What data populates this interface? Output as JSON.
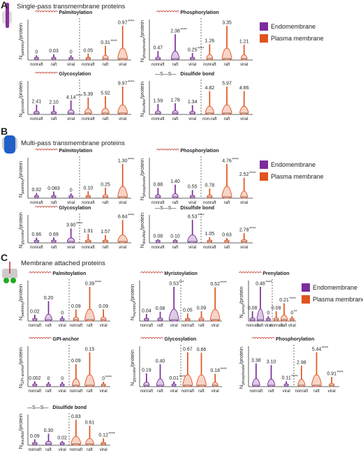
{
  "panels": [
    {
      "label": "A",
      "title": "Single-pass transmembrane proteins",
      "legend": [
        {
          "name": "Endomembrane",
          "color": "#7b2d9c"
        },
        {
          "name": "Plasma membrane",
          "color": "#e0531f"
        }
      ],
      "chart_data": [
        {
          "type": "violin",
          "title": "Palmitoylation",
          "ylabel": {
            "n": "N",
            "sub": "palmitoyl",
            "rest": "/protein"
          },
          "categories": [
            "nonraft",
            "raft",
            "viral",
            "nonraft",
            "raft",
            "viral"
          ],
          "values": [
            0,
            0.03,
            0,
            0.05,
            0.31,
            0.97
          ],
          "value_labels": [
            "0",
            "0.03",
            "0",
            "0.05",
            "0.31",
            "0.97"
          ],
          "stars": [
            null,
            null,
            null,
            null,
            "****",
            "****"
          ]
        },
        {
          "type": "violin",
          "title": "Phosphorylation",
          "ylabel": {
            "n": "N",
            "sub": "phosphosite",
            "rest": "/protein"
          },
          "categories": [
            "nonraft",
            "raft",
            "viral",
            "nonraft",
            "raft",
            "viral"
          ],
          "values": [
            0.47,
            2.38,
            0.25,
            1.26,
            3.35,
            1.21
          ],
          "value_labels": [
            "0.47",
            "2.38",
            "0.25",
            "1.26",
            "3.35",
            "1.21"
          ],
          "stars": [
            null,
            "****",
            "****",
            null,
            null,
            null
          ]
        },
        {
          "type": "violin",
          "title": "Glycosylation",
          "ylabel": {
            "n": "N",
            "sub": "glycosite",
            "rest": "/protein"
          },
          "categories": [
            "nonraft",
            "raft",
            "viral",
            "nonraft",
            "raft",
            "viral"
          ],
          "values": [
            2.41,
            2.1,
            4.14,
            5.39,
            5.92,
            9.97
          ],
          "value_labels": [
            "2.41",
            "2.10",
            "4.14",
            "5.39",
            "5.92",
            "9.97"
          ],
          "stars": [
            null,
            null,
            "****",
            null,
            null,
            "****"
          ]
        },
        {
          "type": "violin",
          "title": "Disulfide bond",
          "icon_label": "—S—S—",
          "ylabel": {
            "n": "N",
            "sub": "disulfide",
            "rest": "/protein"
          },
          "categories": [
            "nonraft",
            "raft",
            "viral",
            "non-raft",
            "raft",
            "viral"
          ],
          "values": [
            1.59,
            1.78,
            1.34,
            4.82,
            5.97,
            4.86
          ],
          "value_labels": [
            "1.59",
            "1.78",
            "1.34",
            "4.82",
            "5.97",
            "4.86"
          ],
          "stars": [
            null,
            null,
            null,
            null,
            null,
            null
          ]
        }
      ]
    },
    {
      "label": "B",
      "title": "Multi-pass transmembrane proteins",
      "legend": [
        {
          "name": "Endomembrane",
          "color": "#7b2d9c"
        },
        {
          "name": "Plasma membrane",
          "color": "#e0531f"
        }
      ],
      "chart_data": [
        {
          "type": "violin",
          "title": "Palmitoylation",
          "ylabel": {
            "n": "N",
            "sub": "palmitoyl",
            "rest": "/protein"
          },
          "categories": [
            "nonraft",
            "raft",
            "viral",
            "nonraft",
            "raft",
            "viral"
          ],
          "values": [
            0.02,
            0.083,
            0,
            0.1,
            0.25,
            1.3
          ],
          "value_labels": [
            "0.02",
            "0.083",
            "0",
            "0.10",
            "0.25",
            "1.30"
          ],
          "stars": [
            null,
            null,
            null,
            null,
            null,
            "****"
          ]
        },
        {
          "type": "violin",
          "title": "Phosphorylation",
          "ylabel": {
            "n": "N",
            "sub": "phosphosite",
            "rest": "/protein"
          },
          "categories": [
            "nonraft",
            "raft",
            "viral",
            "nonraft",
            "raft",
            "viral"
          ],
          "values": [
            0.88,
            1.4,
            0.55,
            0.78,
            4.76,
            2.52
          ],
          "value_labels": [
            "0.88",
            "1.40",
            "0.55",
            "0.78",
            "4.76",
            "2.52"
          ],
          "stars": [
            null,
            null,
            null,
            null,
            "****",
            "****"
          ]
        },
        {
          "type": "violin",
          "title": "Glycosylation",
          "ylabel": {
            "n": "N",
            "sub": "glycosite",
            "rest": "/protein"
          },
          "categories": [
            "nonraft",
            "raft",
            "viral",
            "nonraft",
            "raft",
            "viral"
          ],
          "values": [
            0.66,
            0.69,
            3.9,
            1.91,
            1.57,
            6.84
          ],
          "value_labels": [
            "0.66",
            "0.69",
            "3.90",
            "1.91",
            "1.57",
            "6.84"
          ],
          "stars": [
            null,
            null,
            "****",
            null,
            null,
            "****"
          ]
        },
        {
          "type": "violin",
          "title": "Disulfide bond",
          "icon_label": "—S—S—",
          "ylabel": {
            "n": "N",
            "sub": "disulfide",
            "rest": "/protein"
          },
          "categories": [
            "nonraft",
            "raft",
            "viral",
            "nonraft",
            "raft",
            "viral"
          ],
          "values": [
            0.08,
            0.1,
            8.53,
            1.05,
            0.63,
            2.78
          ],
          "value_labels": [
            "0.08",
            "0.10",
            "8.53",
            "1.05",
            "0.63",
            "2.78"
          ],
          "stars": [
            null,
            null,
            "****",
            null,
            null,
            "****"
          ]
        }
      ]
    },
    {
      "label": "C",
      "title": "Membrane attached proteins",
      "legend": [
        {
          "name": "Endomembrane",
          "color": "#7b2d9c"
        },
        {
          "name": "Plasma membrane",
          "color": "#e0531f"
        }
      ],
      "chart_data": [
        {
          "type": "violin",
          "title": "Palmitoylation",
          "ylabel": {
            "n": "N",
            "sub": "palmitoyl",
            "rest": "/protein"
          },
          "categories": [
            "nonraft",
            "raft",
            "viral",
            "nonraft",
            "raft",
            "viral"
          ],
          "values": [
            0.02,
            0.2,
            0,
            0.09,
            0.39,
            0.09
          ],
          "value_labels": [
            "0.02",
            "0.20",
            "0",
            "0.09",
            "0.39",
            "0.09"
          ],
          "stars": [
            null,
            null,
            null,
            null,
            "****",
            null
          ]
        },
        {
          "type": "violin",
          "title": "Myristoylation",
          "ylabel": {
            "n": "N",
            "sub": "myristoyl",
            "rest": "/protein"
          },
          "categories": [
            "nonraft",
            "raft",
            "viral",
            "nonraft",
            "raft",
            "viral"
          ],
          "values": [
            0.04,
            0.08,
            0.53,
            0.05,
            0.09,
            0.52
          ],
          "value_labels": [
            "0.04",
            "0.08",
            "0.53",
            "0.05",
            "0.09",
            "0.52"
          ],
          "stars": [
            null,
            null,
            "***",
            null,
            null,
            "****"
          ]
        },
        {
          "type": "violin",
          "title": "Prenylation",
          "ylabel": {
            "n": "N",
            "sub": "prenyl",
            "rest": "/protein"
          },
          "categories": [
            "nonraft",
            "raft",
            "viral",
            "nonraft",
            "raft",
            "viral"
          ],
          "values": [
            0.08,
            0.48,
            0,
            0.08,
            0.21,
            0
          ],
          "value_labels": [
            "0.08",
            "0.48",
            "0",
            "0.08",
            "0.21",
            "0"
          ],
          "stars": [
            null,
            "****",
            null,
            null,
            "****",
            "**"
          ]
        },
        {
          "type": "violin",
          "title": "GPI-anchor",
          "ylabel": {
            "n": "N",
            "sub": "GPI-anchor",
            "rest": "/protein"
          },
          "categories": [
            "nonraft",
            "raft",
            "viral",
            "nonraft",
            "raft",
            "viral"
          ],
          "values": [
            0.002,
            0,
            0,
            0.09,
            0.15,
            0
          ],
          "value_labels": [
            "0.002",
            "0",
            "0",
            "0.09",
            "0.15",
            "0"
          ],
          "stars": [
            null,
            null,
            null,
            null,
            null,
            "****"
          ]
        },
        {
          "type": "violin",
          "title": "Glycosylation",
          "ylabel": {
            "n": "N",
            "sub": "glycosite",
            "rest": "/protein"
          },
          "categories": [
            "nonraft",
            "raft",
            "viral",
            "nonraft",
            "raft",
            "viral"
          ],
          "values": [
            0.19,
            0.4,
            0.01,
            0.67,
            0.66,
            0.18
          ],
          "value_labels": [
            "0.19",
            "0.40",
            "0.01",
            "0.67",
            "0.66",
            "0.18"
          ],
          "stars": [
            null,
            null,
            "****",
            null,
            null,
            "****"
          ]
        },
        {
          "type": "violin",
          "title": "Phosphorylation",
          "ylabel": {
            "n": "N",
            "sub": "phosphosite",
            "rest": "/protein"
          },
          "categories": [
            "nonraft",
            "raft",
            "viral",
            "nonraft",
            "raft",
            "viral"
          ],
          "values": [
            3.38,
            3.1,
            0.11,
            2.98,
            5.44,
            0.91
          ],
          "value_labels": [
            "3.38",
            "3.10",
            "0.11",
            "2.98",
            "5.44",
            "0.91"
          ],
          "stars": [
            null,
            null,
            "****",
            null,
            "****",
            "****"
          ]
        },
        {
          "type": "violin",
          "title": "Disulfide bond",
          "icon_label": "—S—S—",
          "ylabel": {
            "n": "N",
            "sub": "disulfide",
            "rest": "/protein"
          },
          "categories": [
            "nonraft",
            "raft",
            "viral",
            "nonraft",
            "raft",
            "viral"
          ],
          "values": [
            0.09,
            0.3,
            0.02,
            0.83,
            0.61,
            0.12
          ],
          "value_labels": [
            "0.09",
            "0.30",
            "0.02",
            "0.83",
            "0.61",
            "0.12"
          ],
          "stars": [
            null,
            null,
            null,
            null,
            null,
            "****"
          ]
        }
      ]
    }
  ]
}
